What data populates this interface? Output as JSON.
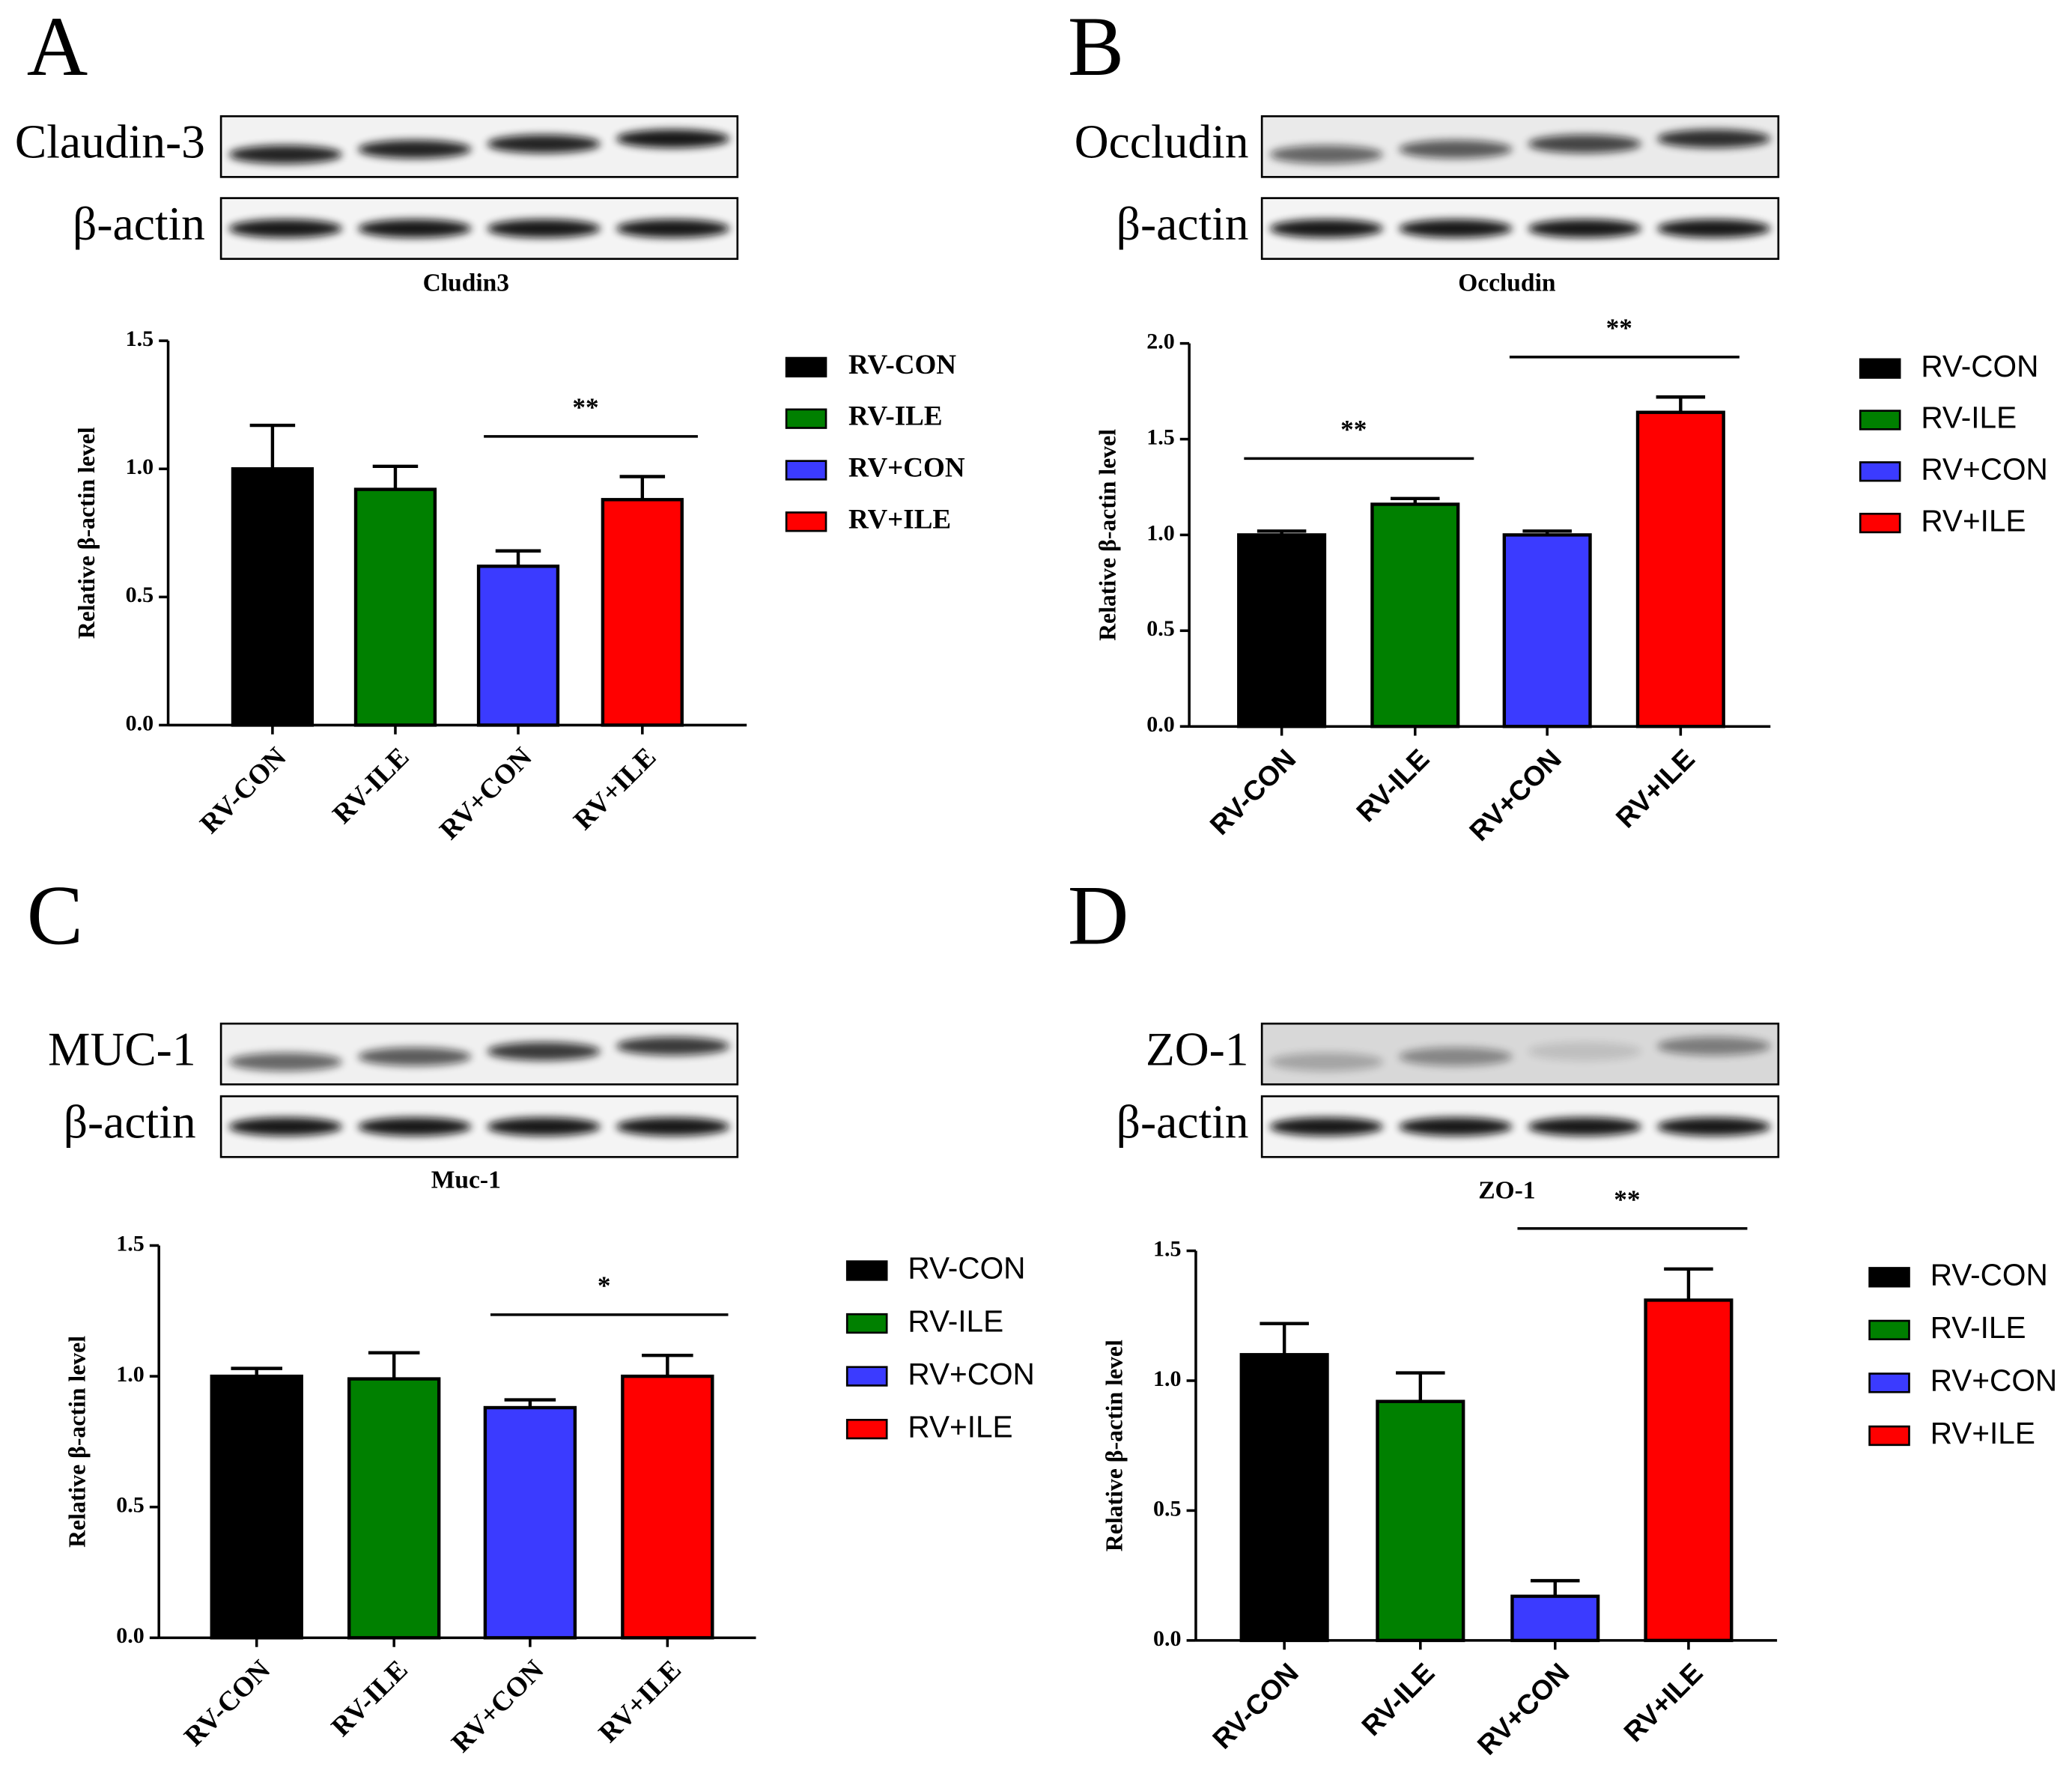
{
  "chart_data": [
    {
      "type": "bar",
      "panel": "A",
      "blots": [
        "Claudin-3",
        "β-actin"
      ],
      "title": "Cludin3",
      "ylabel": "Relative β-actin level",
      "categories": [
        "RV-CON",
        "RV-ILE",
        "RV+CON",
        "RV+ILE"
      ],
      "colors": [
        "#000000",
        "#008000",
        "#3b3bff",
        "#ff0000"
      ],
      "values": [
        1.0,
        0.92,
        0.62,
        0.88
      ],
      "errors": [
        0.17,
        0.09,
        0.06,
        0.09
      ],
      "ylim": [
        0,
        1.5
      ],
      "yticks": [
        {
          "value": 0,
          "label": "0.0"
        },
        0.5,
        {
          "value": 1,
          "label": "1.0"
        },
        1.5
      ],
      "annotations": [
        {
          "text": "**",
          "from": 2,
          "to": 3
        }
      ]
    },
    {
      "type": "bar",
      "panel": "B",
      "blots": [
        "Occludin",
        "β-actin"
      ],
      "title": "Occludin",
      "ylabel": "Relative β-actin level",
      "categories": [
        "RV-CON",
        "RV-ILE",
        "RV+CON",
        "RV+ILE"
      ],
      "colors": [
        "#000000",
        "#008000",
        "#3b3bff",
        "#ff0000"
      ],
      "values": [
        1.0,
        1.16,
        1.0,
        1.64
      ],
      "errors": [
        0.02,
        0.03,
        0.02,
        0.08
      ],
      "ylim": [
        0,
        2
      ],
      "yticks": [
        {
          "value": 0,
          "label": "0.0"
        },
        0.5,
        {
          "value": 1,
          "label": "1.0"
        },
        1.5,
        {
          "value": 2,
          "label": "2.0"
        }
      ],
      "annotations": [
        {
          "text": "**",
          "from": 0,
          "to": 1
        },
        {
          "text": "**",
          "from": 2,
          "to": 3
        }
      ]
    },
    {
      "type": "bar",
      "panel": "C",
      "blots": [
        "MUC-1",
        "β-actin"
      ],
      "title": "Muc-1",
      "ylabel": "Relative β-actin level",
      "categories": [
        "RV-CON",
        "RV-ILE",
        "RV+CON",
        "RV+ILE"
      ],
      "colors": [
        "#000000",
        "#008000",
        "#3b3bff",
        "#ff0000"
      ],
      "values": [
        1.0,
        0.99,
        0.88,
        1.0
      ],
      "errors": [
        0.03,
        0.1,
        0.03,
        0.08
      ],
      "ylim": [
        0,
        1.5
      ],
      "yticks": [
        {
          "value": 0,
          "label": "0.0"
        },
        0.5,
        {
          "value": 1,
          "label": "1.0"
        },
        1.5
      ],
      "annotations": [
        {
          "text": "*",
          "from": 2,
          "to": 3
        }
      ]
    },
    {
      "type": "bar",
      "panel": "D",
      "blots": [
        "ZO-1",
        "β-actin"
      ],
      "title": "ZO-1",
      "ylabel": "Relative β-actin level",
      "categories": [
        "RV-CON",
        "RV-ILE",
        "RV+CON",
        "RV+ILE"
      ],
      "colors": [
        "#000000",
        "#008000",
        "#3b3bff",
        "#ff0000"
      ],
      "values": [
        1.1,
        0.92,
        0.17,
        1.31
      ],
      "errors": [
        0.12,
        0.11,
        0.06,
        0.12
      ],
      "ylim": [
        0,
        1.5
      ],
      "yticks": [
        {
          "value": 0,
          "label": "0.0"
        },
        0.5,
        {
          "value": 1,
          "label": "1.0"
        },
        1.5
      ],
      "annotations": [
        {
          "text": "**",
          "from": 2,
          "to": 3
        }
      ]
    }
  ]
}
